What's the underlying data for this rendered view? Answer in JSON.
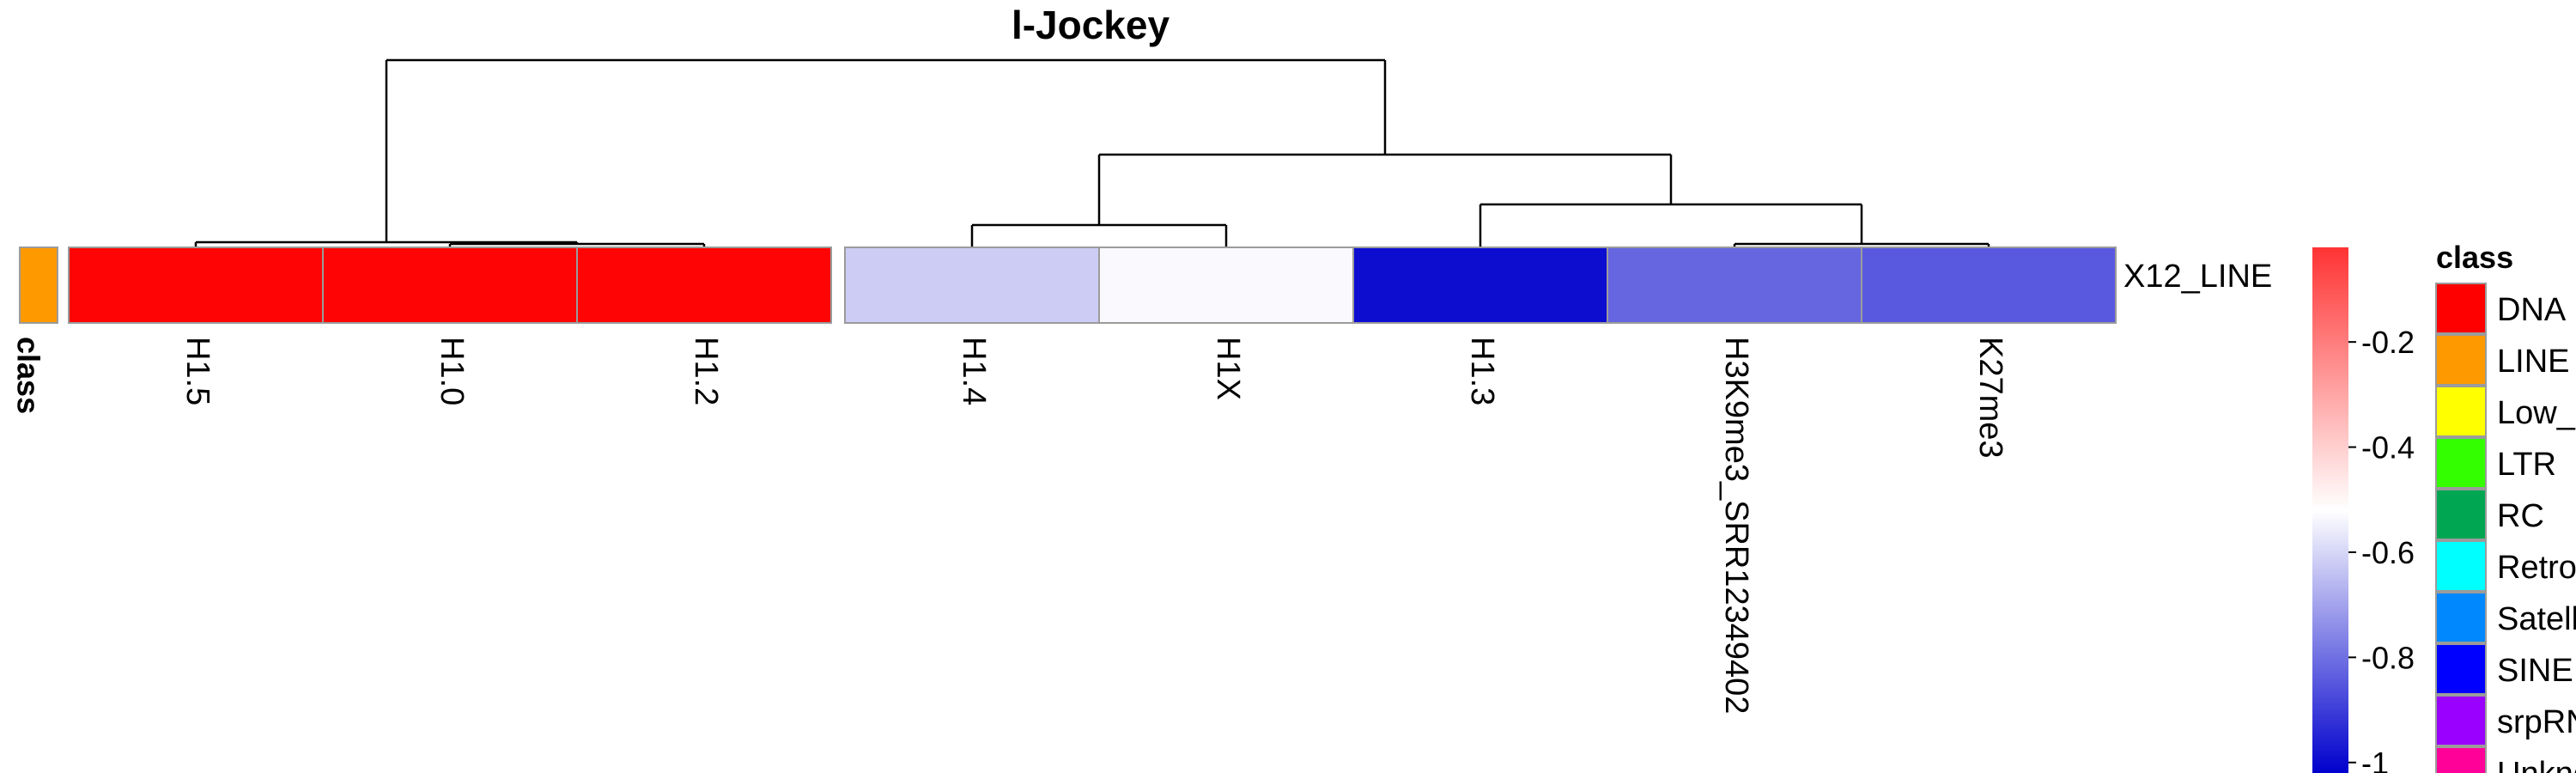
{
  "chart_data": {
    "type": "heatmap",
    "title": "l-Jockey",
    "row_label": "X12_LINE",
    "annotation": {
      "name": "class",
      "value": "LINE",
      "color": "#FF9900"
    },
    "columns": [
      "H1.5",
      "H1.0",
      "H1.2",
      "H1.4",
      "H1X",
      "H1.3",
      "H3K9me3_SRR12349402",
      "K27me3"
    ],
    "values": [
      -0.01,
      -0.01,
      -0.01,
      -0.68,
      -0.61,
      -0.98,
      -0.84,
      -0.86
    ],
    "column_split_after": 3,
    "dendrogram": true,
    "color_scale": {
      "colors": [
        "#FF0000",
        "#FFFFFF",
        "#0000CD"
      ],
      "domain": [
        0.0,
        -0.6,
        -1.0
      ],
      "ticks": [
        -0.2,
        -0.4,
        -0.6,
        -0.8,
        -1
      ]
    },
    "legend": {
      "title": "class",
      "position": "right",
      "entries": [
        {
          "label": "DNA",
          "color": "#FF0000"
        },
        {
          "label": "LINE",
          "color": "#FF9900"
        },
        {
          "label": "Low_complexity",
          "color": "#FFFF00"
        },
        {
          "label": "LTR",
          "color": "#33FF00"
        },
        {
          "label": "RC",
          "color": "#00A651"
        },
        {
          "label": "Retroposon",
          "color": "#00FFFF"
        },
        {
          "label": "Satellite",
          "color": "#0088FF"
        },
        {
          "label": "SINE",
          "color": "#0000FF"
        },
        {
          "label": "srpRNA",
          "color": "#9900FF"
        },
        {
          "label": "Unknown",
          "color": "#FF0099"
        }
      ]
    }
  }
}
